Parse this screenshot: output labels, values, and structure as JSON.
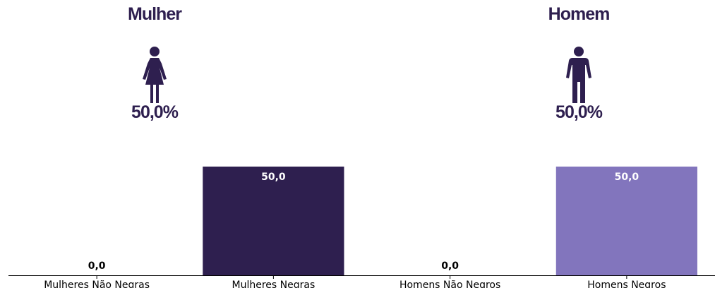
{
  "panels": [
    {
      "title": "Mulher",
      "percent": "50,0%",
      "icon": "female-person-icon",
      "color": "#2e1f4f"
    },
    {
      "title": "Homem",
      "percent": "50,0%",
      "icon": "male-person-icon",
      "color": "#2e1f4f"
    }
  ],
  "chart_data": {
    "type": "bar",
    "categories": [
      "Mulheres Não Negras",
      "Mulheres Negras",
      "Homens Não Negros",
      "Homens Negros"
    ],
    "values": [
      0.0,
      50.0,
      0.0,
      50.0
    ],
    "value_labels": [
      "0,0",
      "50,0",
      "0,0",
      "50,0"
    ],
    "colors": [
      "#2e1f4f",
      "#2e1f4f",
      "#8275bd",
      "#8275bd"
    ],
    "label_colors": [
      "#000000",
      "#ffffff",
      "#000000",
      "#ffffff"
    ],
    "title": "",
    "xlabel": "",
    "ylabel": "",
    "ylim": [
      0,
      50
    ],
    "grid": false,
    "legend": "none"
  }
}
